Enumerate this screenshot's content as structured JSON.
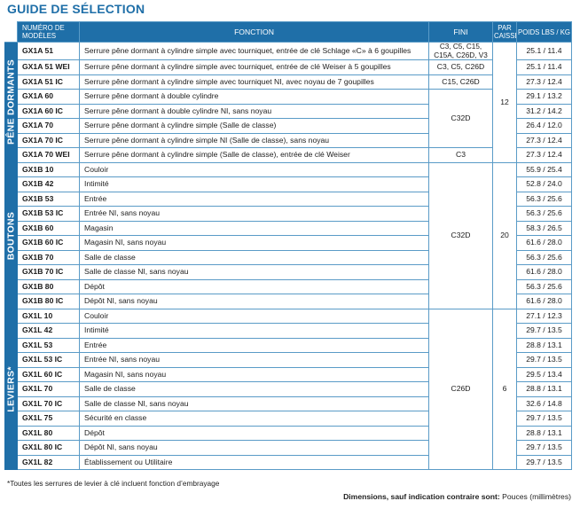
{
  "title": "GUIDE DE SÉLECTION",
  "headers": {
    "model": "NUMÉRO DE MODÈLES",
    "fonction": "FONCTION",
    "fini": "FINI",
    "caisse": "PAR CAISSE",
    "poids": "POIDS LBS / KG"
  },
  "groups": [
    {
      "label": "PÊNE DORMANTS",
      "rows": [
        {
          "model": "GX1A 51",
          "fn": "Serrure pêne dormant à cylindre simple avec tourniquet, entrée de clé Schlage «C» à 6 goupilles",
          "weight": "25.1 / 11.4"
        },
        {
          "model": "GX1A 51 WEI",
          "fn": "Serrure pêne dormant à cylindre simple avec tourniquet, entrée de clé Weiser à 5 goupilles",
          "weight": "25.1 / 11.4"
        },
        {
          "model": "GX1A 51 IC",
          "fn": "Serrure pêne dormant à cylindre simple avec tourniquet NI, avec noyau de 7 goupilles",
          "weight": "27.3 / 12.4"
        },
        {
          "model": "GX1A 60",
          "fn": "Serrure pêne dormant à double cylindre",
          "weight": "29.1 / 13.2"
        },
        {
          "model": "GX1A 60 IC",
          "fn": "Serrure pêne dormant à double cylindre NI, sans noyau",
          "weight": "31.2 / 14.2"
        },
        {
          "model": "GX1A 70",
          "fn": "Serrure pêne dormant à cylindre simple (Salle de classe)",
          "weight": "26.4 / 12.0"
        },
        {
          "model": "GX1A 70 IC",
          "fn": "Serrure pêne dormant à cylindre simple NI (Salle de classe), sans noyau",
          "weight": "27.3 / 12.4"
        },
        {
          "model": "GX1A 70 WEI",
          "fn": "Serrure pêne dormant à cylindre simple (Salle de classe),  entrée de clé Weiser",
          "weight": "27.3 / 12.4"
        }
      ],
      "fini": [
        "C3, C5, C15, C15A, C26D, V3",
        "C3, C5, C26D",
        "C15, C26D",
        "C32D",
        "C3"
      ],
      "caisse": "12"
    },
    {
      "label": "BOUTONS",
      "rows": [
        {
          "model": "GX1B 10",
          "fn": "Couloir",
          "weight": "55.9 / 25.4"
        },
        {
          "model": "GX1B 42",
          "fn": "Intimité",
          "weight": "52.8 / 24.0"
        },
        {
          "model": "GX1B 53",
          "fn": "Entrée",
          "weight": "56.3 / 25.6"
        },
        {
          "model": "GX1B 53 IC",
          "fn": "Entrée NI, sans noyau",
          "weight": "56.3 / 25.6"
        },
        {
          "model": "GX1B 60",
          "fn": "Magasin",
          "weight": "58.3 / 26.5"
        },
        {
          "model": "GX1B 60 IC",
          "fn": "Magasin NI, sans noyau",
          "weight": "61.6 / 28.0"
        },
        {
          "model": "GX1B 70",
          "fn": "Salle de classe",
          "weight": "56.3 / 25.6"
        },
        {
          "model": "GX1B 70 IC",
          "fn": "Salle de classe NI, sans noyau",
          "weight": "61.6 / 28.0"
        },
        {
          "model": "GX1B 80",
          "fn": "Dépôt",
          "weight": "56.3 / 25.6"
        },
        {
          "model": "GX1B 80 IC",
          "fn": "Dépôt NI, sans noyau",
          "weight": "61.6 / 28.0"
        }
      ],
      "fini": [
        "C32D"
      ],
      "caisse": "20"
    },
    {
      "label": "LEVIERS*",
      "rows": [
        {
          "model": "GX1L 10",
          "fn": "Couloir",
          "weight": "27.1 / 12.3"
        },
        {
          "model": "GX1L 42",
          "fn": "Intimité",
          "weight": "29.7 / 13.5"
        },
        {
          "model": "GX1L 53",
          "fn": "Entrée",
          "weight": "28.8 / 13.1"
        },
        {
          "model": "GX1L 53 IC",
          "fn": "Entrée  NI, sans noyau",
          "weight": "29.7 / 13.5"
        },
        {
          "model": "GX1L 60 IC",
          "fn": "Magasin NI, sans noyau",
          "weight": "29.5 / 13.4"
        },
        {
          "model": "GX1L 70",
          "fn": "Salle de classe",
          "weight": "28.8 / 13.1"
        },
        {
          "model": "GX1L 70 IC",
          "fn": "Salle de classe NI, sans noyau",
          "weight": "32.6 / 14.8"
        },
        {
          "model": "GX1L 75",
          "fn": "Sécurité en classe",
          "weight": "29.7 / 13.5"
        },
        {
          "model": "GX1L 80",
          "fn": "Dépôt",
          "weight": "28.8 / 13.1"
        },
        {
          "model": "GX1L 80 IC",
          "fn": "Dépôt NI, sans noyau",
          "weight": "29.7 / 13.5"
        },
        {
          "model": "GX1L 82",
          "fn": "Établissement ou Utilitaire",
          "weight": "29.7 / 13.5"
        }
      ],
      "fini": [
        "C26D"
      ],
      "caisse": "6"
    }
  ],
  "footnote": "*Toutes les serrures de levier à clé incluent fonction d’embrayage",
  "dimensions": {
    "label": "Dimensions, sauf indication contraire sont:",
    "value": "Pouces (millimètres)"
  },
  "colors": {
    "accent": "#1f6fa8",
    "rule": "#5a9bc7"
  }
}
